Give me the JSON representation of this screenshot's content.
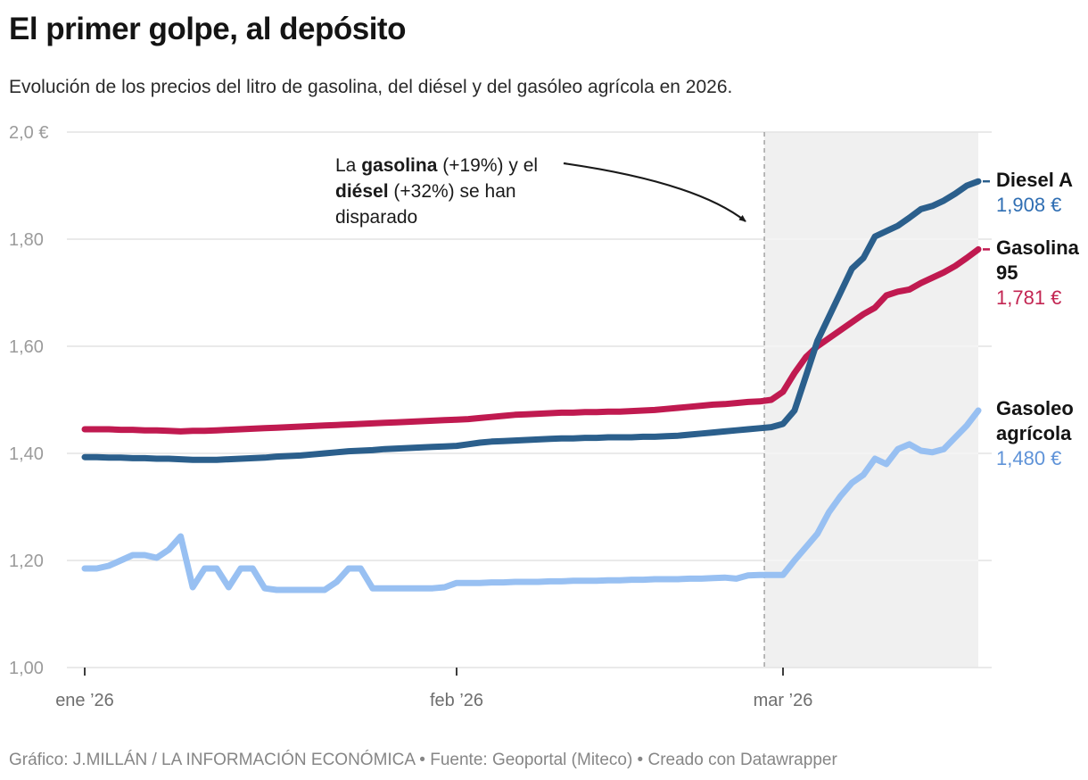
{
  "header": {
    "title": "El primer golpe, al depósito",
    "subtitle": "Evolución de los precios del litro de gasolina, del diésel y del gasóleo agrícola en 2026."
  },
  "footer": {
    "text": "Gráfico: J.MILLÁN / LA INFORMACIÓN ECONÓMICA • Fuente: Geoportal (Miteco) • Creado con Datawrapper"
  },
  "annotation": {
    "parts": [
      {
        "t": "La ",
        "b": false
      },
      {
        "t": "gasolina",
        "b": true
      },
      {
        "t": " (+19%) y el ",
        "b": false
      },
      {
        "t": "diésel",
        "b": true
      },
      {
        "t": " (+32%) se han disparado",
        "b": false
      }
    ]
  },
  "end_labels": {
    "diesel": {
      "name": "Diesel A",
      "value": "1,908 €"
    },
    "gasolina": {
      "name": "Gasolina 95",
      "value": "1,781 €"
    },
    "gasoleo": {
      "name": "Gasoleo agrícola",
      "value": "1,480 €"
    }
  },
  "colors": {
    "diesel": "#2b5f8c",
    "gasolina": "#c01a50",
    "gasoleo": "#98c0f2",
    "diesel_value_text": "#2f6eb3",
    "gasolina_value_text": "#c32552",
    "gasoleo_value_text": "#5f93d8",
    "grid": "#e4e4e4",
    "grid_on_shading": "#f8f8f8",
    "shading": "#f0f0f0",
    "dashed_line": "#a3a3a3",
    "axis_text": "#9b9b9b",
    "x_axis_text": "#6e6e6e",
    "tick_mark": "#3d3d3d",
    "arrow": "#1a1a1a"
  },
  "axes": {
    "y_ticks": [
      {
        "label": "2,0 €",
        "value": 2.0
      },
      {
        "label": "1,80",
        "value": 1.8
      },
      {
        "label": "1,60",
        "value": 1.6
      },
      {
        "label": "1,40",
        "value": 1.4
      },
      {
        "label": "1,20",
        "value": 1.2
      },
      {
        "label": "1,00",
        "value": 1.0
      }
    ],
    "x_ticks": [
      {
        "label": "ene ’26",
        "day": 0
      },
      {
        "label": "feb ’26",
        "day": 31
      },
      {
        "label": "mar ’26",
        "day": 59
      }
    ]
  },
  "chart_data": {
    "type": "line",
    "title": "El primer golpe, al depósito",
    "x_unit": "days, daily prices from 2026-01-01 (day 0) to 2026-03-18 (day 76)",
    "ylabel": "€ per litre",
    "ylim": [
      1.0,
      2.0
    ],
    "grid": true,
    "highlight": {
      "from_day": 57.4,
      "to_day": 76,
      "dashed_line_day": 57.4
    },
    "series": [
      {
        "name": "Gasoleo agrícola",
        "color": "#98c0f2",
        "final_value": 1.48,
        "connector_dash": false,
        "values": [
          1.185,
          1.185,
          1.19,
          1.2,
          1.21,
          1.21,
          1.205,
          1.22,
          1.245,
          1.15,
          1.185,
          1.185,
          1.15,
          1.185,
          1.185,
          1.148,
          1.145,
          1.145,
          1.145,
          1.145,
          1.145,
          1.16,
          1.185,
          1.185,
          1.148,
          1.148,
          1.148,
          1.148,
          1.148,
          1.148,
          1.15,
          1.158,
          1.158,
          1.158,
          1.159,
          1.159,
          1.16,
          1.16,
          1.16,
          1.161,
          1.161,
          1.162,
          1.162,
          1.162,
          1.163,
          1.163,
          1.164,
          1.164,
          1.165,
          1.165,
          1.165,
          1.166,
          1.166,
          1.167,
          1.168,
          1.166,
          1.172,
          1.173,
          1.173,
          1.173,
          1.2,
          1.225,
          1.25,
          1.29,
          1.32,
          1.345,
          1.36,
          1.39,
          1.38,
          1.408,
          1.417,
          1.405,
          1.402,
          1.408,
          1.43,
          1.452,
          1.48
        ]
      },
      {
        "name": "Gasolina 95",
        "color": "#c01a50",
        "final_value": 1.781,
        "connector_dash": true,
        "values": [
          1.445,
          1.445,
          1.445,
          1.444,
          1.444,
          1.443,
          1.443,
          1.442,
          1.441,
          1.442,
          1.442,
          1.443,
          1.444,
          1.445,
          1.446,
          1.447,
          1.448,
          1.449,
          1.45,
          1.451,
          1.452,
          1.453,
          1.454,
          1.455,
          1.456,
          1.457,
          1.458,
          1.459,
          1.46,
          1.461,
          1.462,
          1.463,
          1.464,
          1.466,
          1.468,
          1.47,
          1.472,
          1.473,
          1.474,
          1.475,
          1.476,
          1.476,
          1.477,
          1.477,
          1.478,
          1.478,
          1.479,
          1.48,
          1.481,
          1.483,
          1.485,
          1.487,
          1.489,
          1.491,
          1.492,
          1.494,
          1.496,
          1.497,
          1.5,
          1.515,
          1.55,
          1.58,
          1.6,
          1.615,
          1.63,
          1.645,
          1.66,
          1.672,
          1.695,
          1.702,
          1.706,
          1.718,
          1.728,
          1.738,
          1.75,
          1.765,
          1.781
        ]
      },
      {
        "name": "Diesel A",
        "color": "#2b5f8c",
        "final_value": 1.908,
        "connector_dash": true,
        "values": [
          1.393,
          1.393,
          1.392,
          1.392,
          1.391,
          1.391,
          1.39,
          1.39,
          1.389,
          1.388,
          1.388,
          1.388,
          1.389,
          1.39,
          1.391,
          1.392,
          1.394,
          1.395,
          1.396,
          1.398,
          1.4,
          1.402,
          1.404,
          1.405,
          1.406,
          1.408,
          1.409,
          1.41,
          1.411,
          1.412,
          1.413,
          1.414,
          1.417,
          1.42,
          1.422,
          1.423,
          1.424,
          1.425,
          1.426,
          1.427,
          1.428,
          1.428,
          1.429,
          1.429,
          1.43,
          1.43,
          1.43,
          1.431,
          1.431,
          1.432,
          1.433,
          1.435,
          1.437,
          1.439,
          1.441,
          1.443,
          1.445,
          1.447,
          1.449,
          1.455,
          1.48,
          1.545,
          1.61,
          1.655,
          1.7,
          1.745,
          1.765,
          1.805,
          1.815,
          1.825,
          1.84,
          1.856,
          1.862,
          1.872,
          1.885,
          1.9,
          1.908
        ]
      }
    ]
  }
}
